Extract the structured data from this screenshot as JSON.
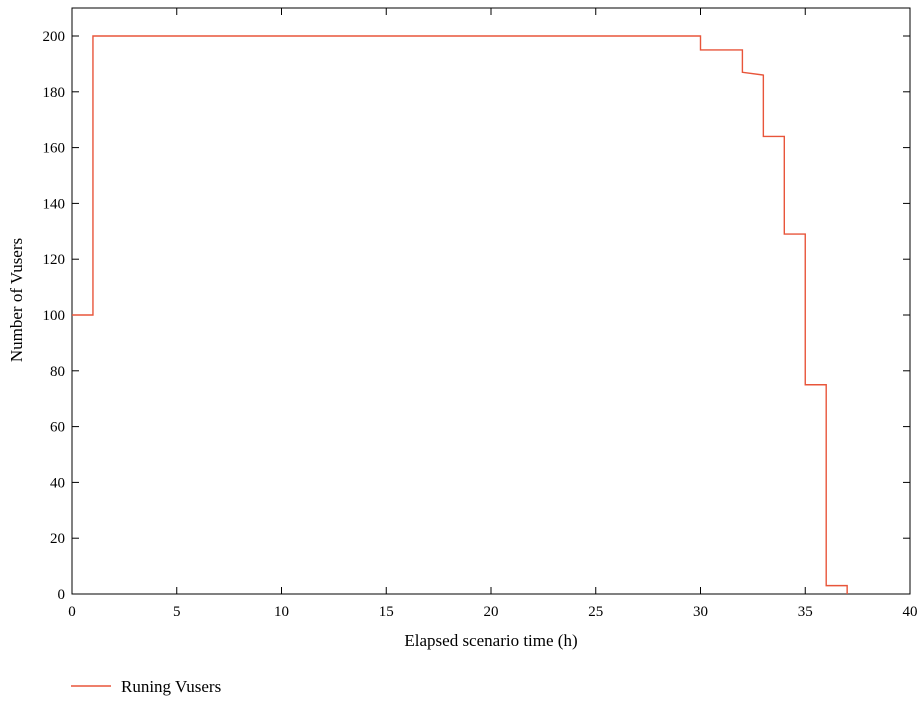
{
  "chart_data": {
    "type": "line",
    "title": "",
    "xlabel": "Elapsed scenario time (h)",
    "ylabel": "Number of Vusers",
    "xlim": [
      0,
      40
    ],
    "ylim": [
      0,
      210
    ],
    "xticks": [
      0,
      5,
      10,
      15,
      20,
      25,
      30,
      35,
      40
    ],
    "yticks": [
      0,
      20,
      40,
      60,
      80,
      100,
      120,
      140,
      160,
      180,
      200
    ],
    "grid": false,
    "legend_position": "bottom-left",
    "line_style": "step",
    "series": [
      {
        "name": "Runing Vusers",
        "color": "#e8553a",
        "x": [
          0,
          1,
          1,
          30,
          30,
          32,
          32,
          33,
          33,
          34,
          34,
          35,
          35,
          36,
          36,
          37,
          37
        ],
        "y": [
          100,
          100,
          200,
          200,
          195,
          195,
          187,
          186,
          164,
          164,
          129,
          129,
          75,
          75,
          3,
          3,
          0
        ]
      }
    ]
  }
}
